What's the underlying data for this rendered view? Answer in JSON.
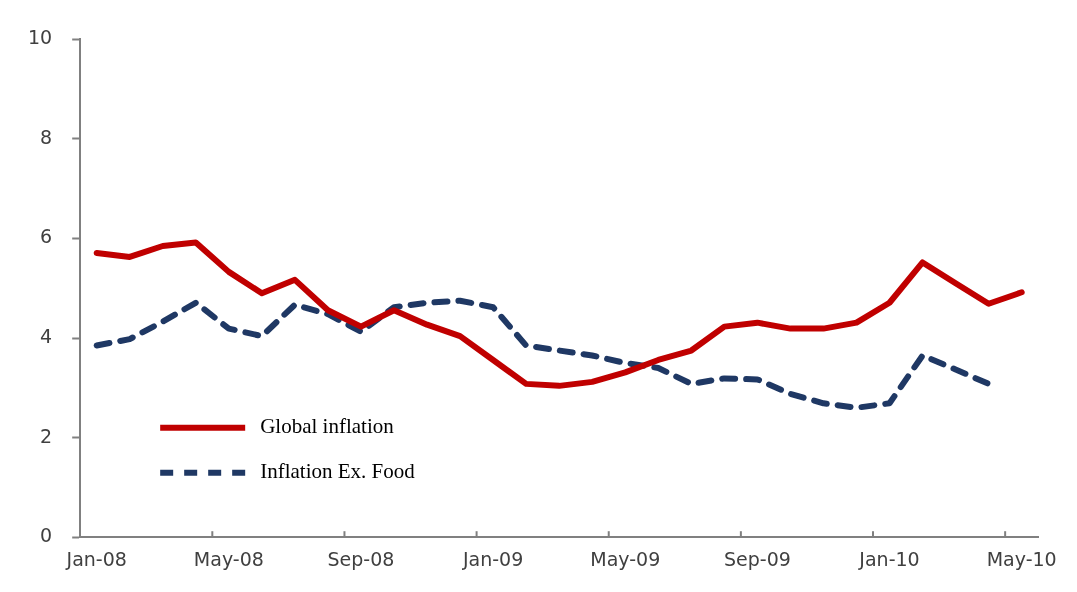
{
  "chart_data": {
    "type": "line",
    "categories": [
      "Jan-08",
      null,
      null,
      null,
      "May-08",
      null,
      null,
      null,
      "Sep-08",
      null,
      null,
      null,
      "Jan-09",
      null,
      null,
      null,
      "May-09",
      null,
      null,
      null,
      "Sep-09",
      null,
      null,
      null,
      "Jan-10",
      null,
      null,
      null,
      "May-10"
    ],
    "series": [
      {
        "name": "Global inflation",
        "color": "#c00000",
        "line_style": "solid",
        "values": [
          5.71,
          5.63,
          5.85,
          5.92,
          5.33,
          4.9,
          5.17,
          4.56,
          4.23,
          4.56,
          4.27,
          4.04,
          3.56,
          3.08,
          3.04,
          3.12,
          3.31,
          3.56,
          3.75,
          4.23,
          4.31,
          4.19,
          4.19,
          4.31,
          4.71,
          5.52,
          5.1,
          4.69,
          4.92
        ]
      },
      {
        "name": "Inflation Ex. Food",
        "color": "#1f3864",
        "line_style": "dashed",
        "values": [
          3.85,
          3.98,
          4.33,
          4.71,
          4.19,
          4.04,
          4.67,
          4.48,
          4.13,
          4.62,
          4.71,
          4.75,
          4.62,
          3.85,
          3.75,
          3.65,
          3.5,
          3.4,
          3.08,
          3.19,
          3.17,
          2.88,
          2.69,
          2.6,
          2.69,
          3.65,
          3.37,
          3.08,
          null
        ]
      }
    ],
    "ylim": [
      0,
      10
    ],
    "yticks": [
      0,
      2,
      4,
      6,
      8,
      10
    ],
    "grid": false,
    "legend": "left",
    "marker": "none"
  }
}
